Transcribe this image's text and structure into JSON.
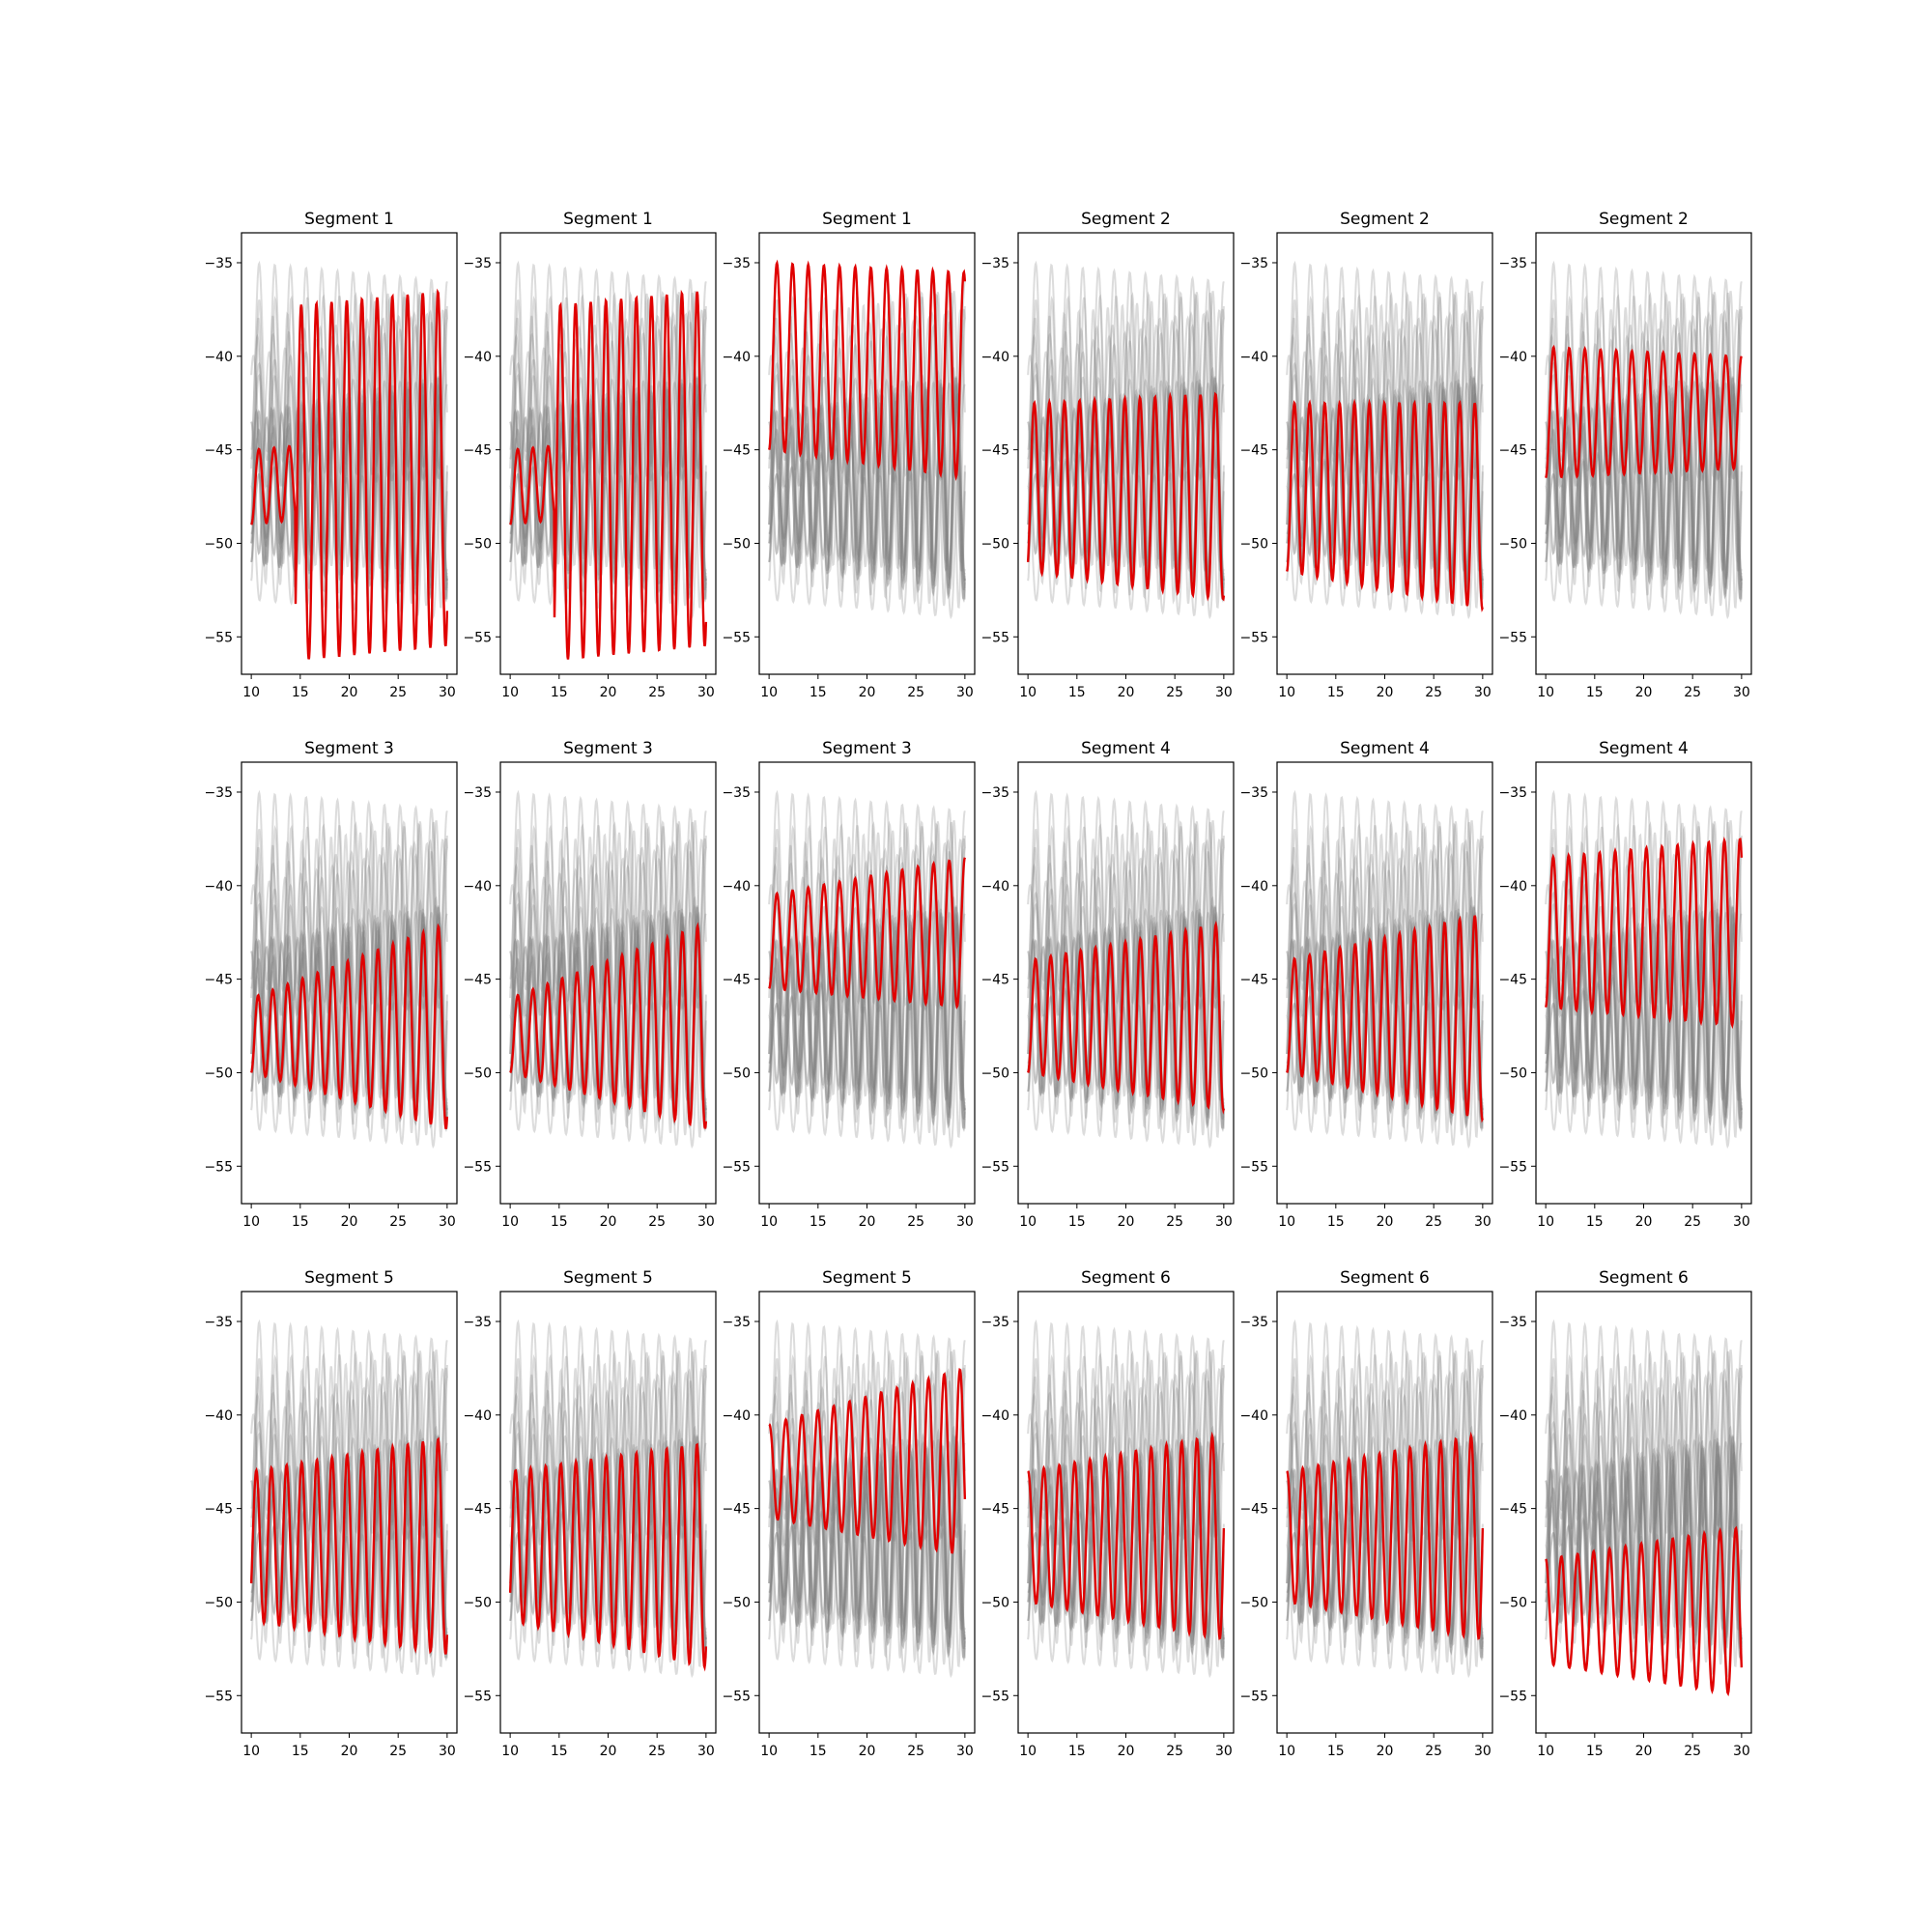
{
  "chart_data": {
    "type": "line",
    "grid_rows": 3,
    "grid_cols": 6,
    "xlim": [
      9,
      31
    ],
    "ylim": [
      -57,
      -33.4
    ],
    "xticks": [
      10,
      15,
      20,
      25,
      30
    ],
    "yticks": [
      -35,
      -40,
      -45,
      -50,
      -55
    ],
    "xtick_labels": [
      "10",
      "15",
      "20",
      "25",
      "30"
    ],
    "ytick_labels": [
      "−35",
      "−40",
      "−45",
      "−50",
      "−55"
    ],
    "grid": false,
    "legend": "none",
    "t_start": 10,
    "t_end": 30,
    "colors": {
      "highlight": "#e00000",
      "background_series": "#808080",
      "axes": "#000000",
      "background": "#ffffff"
    },
    "background_series": [
      {
        "start": -49,
        "base_start": -47,
        "base_end": -47,
        "amp_start": 2.5,
        "amp_end": 6,
        "period": 1.55
      },
      {
        "start": -50,
        "base_start": -48,
        "base_end": -47,
        "amp_start": 3,
        "amp_end": 6,
        "period": 1.55
      },
      {
        "start": -46,
        "base_start": -40,
        "base_end": -41,
        "amp_start": 5,
        "amp_end": 5,
        "period": 1.6
      },
      {
        "start": -51,
        "base_start": -47,
        "base_end": -47,
        "amp_start": 4,
        "amp_end": 5,
        "period": 1.55
      },
      {
        "start": -52,
        "base_start": -47,
        "base_end": -47,
        "amp_start": 4,
        "amp_end": 5.5,
        "period": 1.55
      },
      {
        "start": -47,
        "base_start": -44,
        "base_end": -44,
        "amp_start": 3,
        "amp_end": 2.5,
        "period": 1.6
      },
      {
        "start": -50,
        "base_start": -48,
        "base_end": -47,
        "amp_start": 1.5,
        "amp_end": 5,
        "period": 1.55
      },
      {
        "start": -50,
        "base_start": -48,
        "base_end": -47,
        "amp_start": 1.5,
        "amp_end": 5.5,
        "period": 1.55
      },
      {
        "start": -46,
        "base_start": -43,
        "base_end": -42,
        "amp_start": 2.5,
        "amp_end": 4,
        "period": 1.6
      },
      {
        "start": -50,
        "base_start": -47,
        "base_end": -47,
        "amp_start": 3,
        "amp_end": 4.5,
        "period": 1.55
      },
      {
        "start": -51,
        "base_start": -47,
        "base_end": -47,
        "amp_start": 3,
        "amp_end": 5,
        "period": 1.55
      },
      {
        "start": -46,
        "base_start": -43,
        "base_end": -42,
        "amp_start": 4,
        "amp_end": 4.5,
        "period": 1.6
      },
      {
        "start": -49,
        "base_start": -47,
        "base_end": -47,
        "amp_start": 4,
        "amp_end": 5.5,
        "period": 1.55
      },
      {
        "start": -49,
        "base_start": -47,
        "base_end": -47,
        "amp_start": 4,
        "amp_end": 6,
        "period": 1.55
      },
      {
        "start": -41,
        "base_start": -43,
        "base_end": -42,
        "amp_start": 3,
        "amp_end": 4.5,
        "period": 1.6
      },
      {
        "start": -43,
        "base_start": -47,
        "base_end": -46,
        "amp_start": 3.5,
        "amp_end": 5,
        "period": 1.55
      },
      {
        "start": -43,
        "base_start": -47,
        "base_end": -46,
        "amp_start": 3.5,
        "amp_end": 5.5,
        "period": 1.55
      },
      {
        "start": -47,
        "base_start": -50,
        "base_end": -50,
        "amp_start": 3,
        "amp_end": 4,
        "period": 1.6
      },
      {
        "start": -52,
        "base_start": -45,
        "base_end": -45,
        "amp_start": 7,
        "amp_end": 8.5,
        "period": 1.5
      },
      {
        "start": -51,
        "base_start": -44,
        "base_end": -44,
        "amp_start": 7,
        "amp_end": 7.5,
        "period": 1.65
      }
    ],
    "panels": [
      {
        "title": "Segment 1",
        "highlight": {
          "start": -49,
          "base_start": -47,
          "base_end": -46,
          "amp_start": 2,
          "amp_end": 9.5,
          "period": 1.55,
          "regime_change": 14.5
        }
      },
      {
        "title": "Segment 1",
        "highlight": {
          "start": -50,
          "base_start": -47,
          "base_end": -46,
          "amp_start": 2,
          "amp_end": 9.5,
          "period": 1.55,
          "regime_change": 14.5
        }
      },
      {
        "title": "Segment 1",
        "highlight": {
          "start": -46,
          "base_start": -40,
          "base_end": -41,
          "amp_start": 5,
          "amp_end": 5.5,
          "period": 1.6
        }
      },
      {
        "title": "Segment 2",
        "highlight": {
          "start": -51,
          "base_start": -47,
          "base_end": -47.5,
          "amp_start": 4.5,
          "amp_end": 5.5,
          "period": 1.55
        }
      },
      {
        "title": "Segment 2",
        "highlight": {
          "start": -52,
          "base_start": -47,
          "base_end": -48,
          "amp_start": 4.5,
          "amp_end": 5.5,
          "period": 1.55
        }
      },
      {
        "title": "Segment 2",
        "highlight": {
          "start": -47,
          "base_start": -43,
          "base_end": -43,
          "amp_start": 3.5,
          "amp_end": 3,
          "period": 1.6
        }
      },
      {
        "title": "Segment 3",
        "highlight": {
          "start": -50,
          "base_start": -48,
          "base_end": -47.5,
          "amp_start": 2,
          "amp_end": 5.5,
          "period": 1.55
        }
      },
      {
        "title": "Segment 3",
        "highlight": {
          "start": -50.5,
          "base_start": -48,
          "base_end": -47.5,
          "amp_start": 2,
          "amp_end": 5.5,
          "period": 1.55
        }
      },
      {
        "title": "Segment 3",
        "highlight": {
          "start": -46.5,
          "base_start": -43,
          "base_end": -42.5,
          "amp_start": 2.5,
          "amp_end": 4,
          "period": 1.6
        }
      },
      {
        "title": "Segment 4",
        "highlight": {
          "start": -50.5,
          "base_start": -47,
          "base_end": -47,
          "amp_start": 3,
          "amp_end": 5,
          "period": 1.55
        }
      },
      {
        "title": "Segment 4",
        "highlight": {
          "start": -51,
          "base_start": -47,
          "base_end": -47,
          "amp_start": 3,
          "amp_end": 5.5,
          "period": 1.55
        }
      },
      {
        "title": "Segment 4",
        "highlight": {
          "start": -46.5,
          "base_start": -42.5,
          "base_end": -42.5,
          "amp_start": 4,
          "amp_end": 5,
          "period": 1.6
        }
      },
      {
        "title": "Segment 5",
        "highlight": {
          "start": -49,
          "base_start": -47,
          "base_end": -47,
          "amp_start": 4,
          "amp_end": 5.8,
          "period": 1.55
        }
      },
      {
        "title": "Segment 5",
        "highlight": {
          "start": -49.5,
          "base_start": -47,
          "base_end": -47.5,
          "amp_start": 4,
          "amp_end": 6,
          "period": 1.55
        }
      },
      {
        "title": "Segment 5",
        "highlight": {
          "start": -40.5,
          "base_start": -43,
          "base_end": -42.5,
          "amp_start": 2.5,
          "amp_end": 5,
          "period": 1.6
        }
      },
      {
        "title": "Segment 6",
        "highlight": {
          "start": -43,
          "base_start": -46.5,
          "base_end": -46.5,
          "amp_start": 3.5,
          "amp_end": 5.5,
          "period": 1.55
        }
      },
      {
        "title": "Segment 6",
        "highlight": {
          "start": -43,
          "base_start": -46.5,
          "base_end": -46.5,
          "amp_start": 3.5,
          "amp_end": 5.5,
          "period": 1.55
        }
      },
      {
        "title": "Segment 6",
        "highlight": {
          "start": -47.5,
          "base_start": -50.5,
          "base_end": -50.5,
          "amp_start": 2.8,
          "amp_end": 4.5,
          "period": 1.6
        }
      }
    ]
  }
}
